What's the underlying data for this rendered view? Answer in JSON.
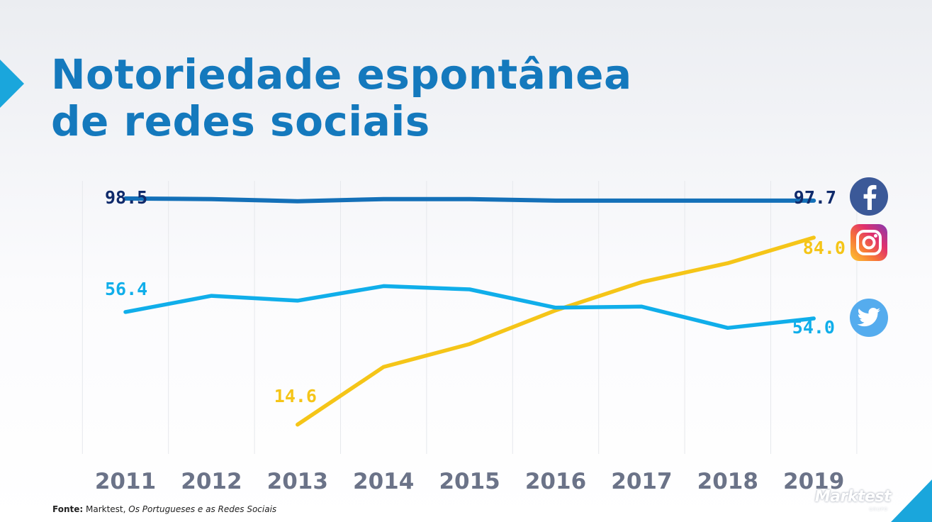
{
  "title": {
    "line1": "Notoriedade espontânea",
    "line2": "de redes sociais"
  },
  "chart_data": {
    "type": "line",
    "title": "Notoriedade espontânea de redes sociais",
    "categories": [
      "2011",
      "2012",
      "2013",
      "2014",
      "2015",
      "2016",
      "2017",
      "2018",
      "2019"
    ],
    "ylim": [
      0,
      100
    ],
    "grid": "vertical",
    "series": [
      {
        "name": "Facebook",
        "icon": "facebook-icon",
        "color": "#1470b8",
        "label_color": "#0f2a6b",
        "values": [
          98.5,
          98.3,
          97.5,
          98.3,
          98.3,
          97.7,
          97.7,
          97.7,
          97.7
        ],
        "start_label": "98.5",
        "end_label": "97.7"
      },
      {
        "name": "Instagram",
        "icon": "instagram-icon",
        "color": "#f5c518",
        "label_color": "#f5c518",
        "values": [
          null,
          null,
          14.6,
          36.0,
          44.5,
          57.0,
          67.5,
          74.5,
          84.0
        ],
        "start_label": "14.6",
        "end_label": "84.0"
      },
      {
        "name": "Twitter",
        "icon": "twitter-icon",
        "color": "#10aeea",
        "label_color": "#10aeea",
        "values": [
          56.4,
          62.4,
          60.6,
          66.0,
          64.8,
          58.0,
          58.4,
          50.5,
          54.0
        ],
        "start_label": "56.4",
        "end_label": "54.0"
      }
    ]
  },
  "footnote": {
    "label": "Fonte:",
    "source": "Marktest,",
    "publication": "Os Portugueses e as Redes Sociais"
  },
  "brand": {
    "name": "Marktest",
    "sub": "GRUPO"
  }
}
